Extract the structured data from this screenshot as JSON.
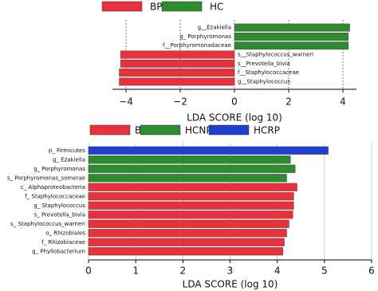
{
  "chart_data": [
    {
      "type": "bar",
      "xlabel": "LDA SCORE (log 10)",
      "grid": "dashed",
      "categories": [
        "g__Ezakiella",
        "g_ Porphyromonas",
        "f__Porphyromonadaceae",
        "s__Staphylococcus_warneri",
        "s__Prevotella_bivia",
        "f__Staphylococcaceae",
        "g__Staphylococcus"
      ],
      "series": [
        {
          "name": "BP",
          "color": "#e8313b",
          "values": [
            null,
            null,
            null,
            -4.2,
            -4.2,
            -4.25,
            -4.25
          ]
        },
        {
          "name": "HC",
          "color": "#2f8b2f",
          "values": [
            4.25,
            4.2,
            4.2,
            null,
            null,
            null,
            null
          ]
        }
      ],
      "xlim": [
        -4.5,
        4.5
      ],
      "xticks": [
        {
          "value": -4,
          "label": "−4"
        },
        {
          "value": -2,
          "label": "−2"
        },
        0,
        2,
        4
      ]
    },
    {
      "type": "bar",
      "xlabel": "LDA SCORE (log 10)",
      "grid": "solid",
      "categories": [
        "p_ Firmicutes",
        "g_ Ezakiella",
        "g_ Porphyromonas",
        "s_ Porphyromonas_somerae",
        "c_ Alphaproteobacteria",
        "f_ Staphylococcaceae",
        "g_ Staphylococcus",
        "s_ Prevotella_bivia",
        "s_ Staphylococcus_warneri",
        "o_ Rhizobiales",
        "f_ Rhizobiaceae",
        "g_ Phyllobacterium"
      ],
      "series": [
        {
          "name": "BP",
          "color": "#e8313b",
          "values": [
            null,
            null,
            null,
            null,
            4.42,
            4.35,
            4.35,
            4.33,
            4.25,
            4.2,
            4.15,
            4.12
          ]
        },
        {
          "name": "HCNP",
          "color": "#2f8b2f",
          "values": [
            null,
            4.28,
            4.38,
            4.2,
            null,
            null,
            null,
            null,
            null,
            null,
            null,
            null
          ]
        },
        {
          "name": "HCRP",
          "color": "#1f3fd0",
          "values": [
            5.08,
            null,
            null,
            null,
            null,
            null,
            null,
            null,
            null,
            null,
            null,
            null
          ]
        }
      ],
      "xlim": [
        0,
        6
      ],
      "xticks": [
        0,
        1,
        2,
        3,
        4,
        5,
        6
      ]
    }
  ]
}
